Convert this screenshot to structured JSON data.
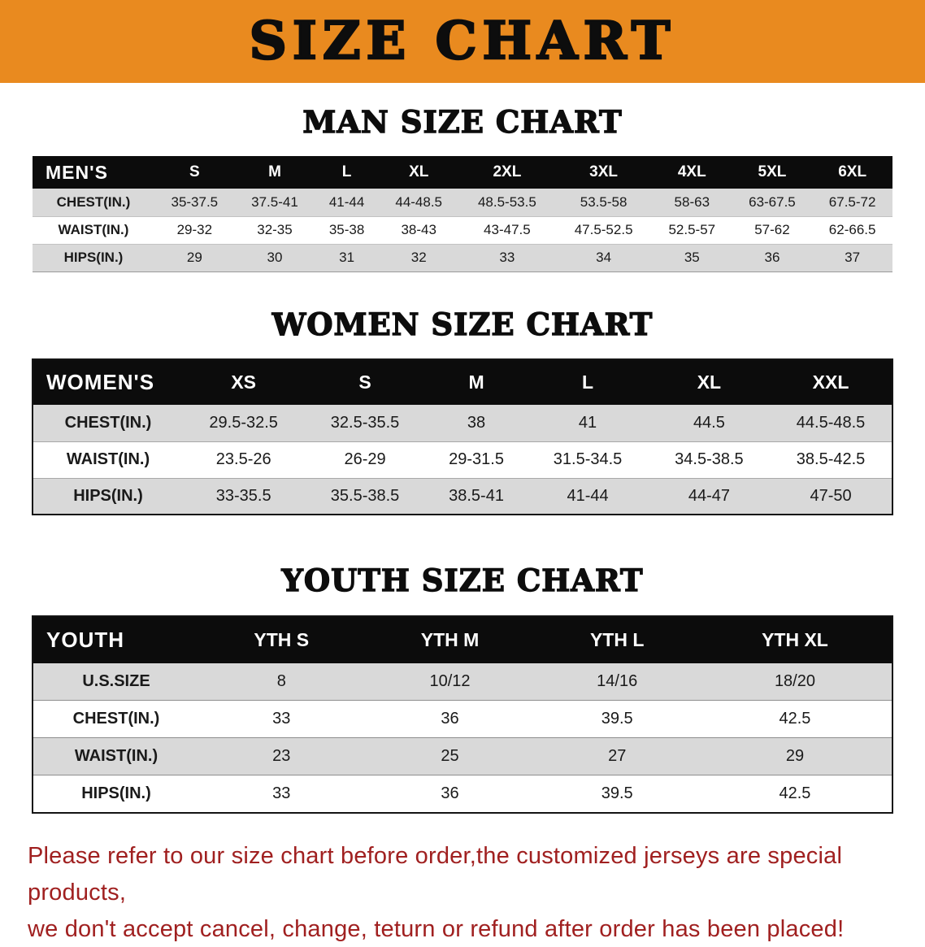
{
  "banner": {
    "title": "SIZE CHART",
    "bg_color": "#E98A1F"
  },
  "sections": [
    {
      "id": "men",
      "heading": "MAN SIZE CHART",
      "table": {
        "header": [
          "MEN'S",
          "S",
          "M",
          "L",
          "XL",
          "2XL",
          "3XL",
          "4XL",
          "5XL",
          "6XL"
        ],
        "rows": [
          [
            "CHEST(IN.)",
            "35-37.5",
            "37.5-41",
            "41-44",
            "44-48.5",
            "48.5-53.5",
            "53.5-58",
            "58-63",
            "63-67.5",
            "67.5-72"
          ],
          [
            "WAIST(IN.)",
            "29-32",
            "32-35",
            "35-38",
            "38-43",
            "43-47.5",
            "47.5-52.5",
            "52.5-57",
            "57-62",
            "62-66.5"
          ],
          [
            "HIPS(IN.)",
            "29",
            "30",
            "31",
            "32",
            "33",
            "34",
            "35",
            "36",
            "37"
          ]
        ]
      }
    },
    {
      "id": "women",
      "heading": "WOMEN SIZE CHART",
      "table": {
        "header": [
          "WOMEN'S",
          "XS",
          "S",
          "M",
          "L",
          "XL",
          "XXL"
        ],
        "rows": [
          [
            "CHEST(IN.)",
            "29.5-32.5",
            "32.5-35.5",
            "38",
            "41",
            "44.5",
            "44.5-48.5"
          ],
          [
            "WAIST(IN.)",
            "23.5-26",
            "26-29",
            "29-31.5",
            "31.5-34.5",
            "34.5-38.5",
            "38.5-42.5"
          ],
          [
            "HIPS(IN.)",
            "33-35.5",
            "35.5-38.5",
            "38.5-41",
            "41-44",
            "44-47",
            "47-50"
          ]
        ]
      }
    },
    {
      "id": "youth",
      "heading": "YOUTH SIZE CHART",
      "table": {
        "header": [
          "YOUTH",
          "YTH S",
          "YTH M",
          "YTH L",
          "YTH XL"
        ],
        "rows": [
          [
            "U.S.SIZE",
            "8",
            "10/12",
            "14/16",
            "18/20"
          ],
          [
            "CHEST(IN.)",
            "33",
            "36",
            "39.5",
            "42.5"
          ],
          [
            "WAIST(IN.)",
            "23",
            "25",
            "27",
            "29"
          ],
          [
            "HIPS(IN.)",
            "33",
            "36",
            "39.5",
            "42.5"
          ]
        ]
      }
    }
  ],
  "footer": {
    "line1": "Please refer to our size chart before order,the customized jerseys are special products,",
    "line2": "we don't accept cancel, change, teturn or refund after order has been placed!",
    "color": "#A02020"
  },
  "colors": {
    "table_header_bg": "#0C0C0C",
    "row_stripe": "#D9D9D9"
  }
}
